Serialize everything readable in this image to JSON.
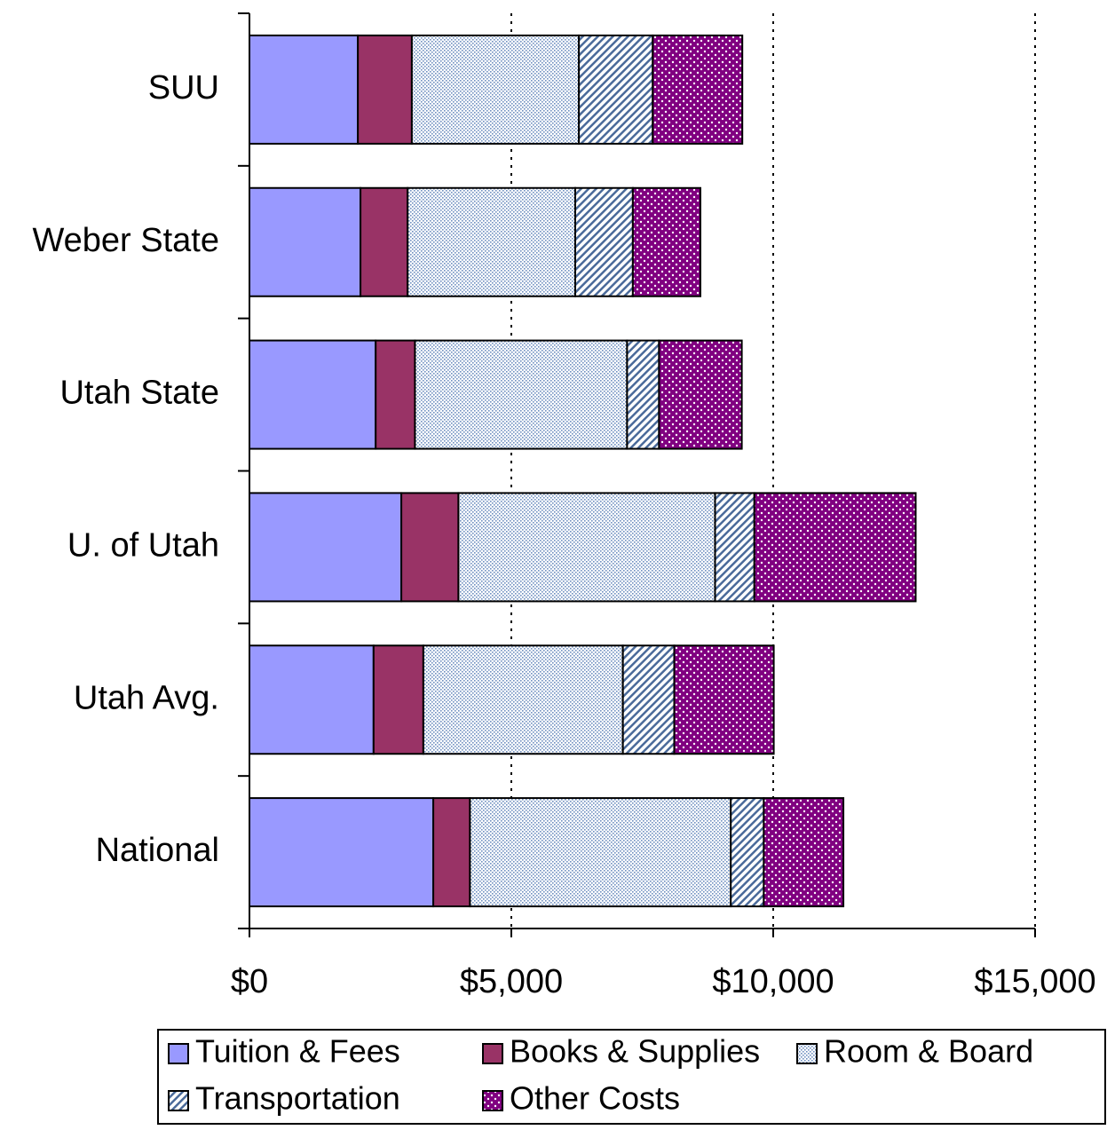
{
  "chart_data": {
    "type": "stacked_bar_horizontal",
    "categories": [
      "SUU",
      "Weber State",
      "Utah State",
      "U. of Utah",
      "Utah Avg.",
      "National"
    ],
    "series": [
      {
        "name": "Tuition & Fees",
        "color": "#9999ff",
        "pattern": "solid",
        "values": [
          2070,
          2120,
          2410,
          2900,
          2370,
          3510
        ]
      },
      {
        "name": "Books & Supplies",
        "color": "#993366",
        "pattern": "solid",
        "values": [
          1030,
          900,
          750,
          1090,
          950,
          700
        ]
      },
      {
        "name": "Room & Board",
        "color": "#6f8fc0",
        "pattern": "dots",
        "values": [
          3190,
          3200,
          4050,
          4900,
          3810,
          4980
        ]
      },
      {
        "name": "Transportation",
        "color": "#4a6a9a",
        "pattern": "hatch",
        "values": [
          1410,
          1100,
          610,
          750,
          980,
          630
        ]
      },
      {
        "name": "Other Costs",
        "color": "#800080",
        "pattern": "dots-on-color",
        "values": [
          1710,
          1290,
          1580,
          3080,
          1900,
          1520
        ]
      }
    ],
    "xlim": [
      0,
      15000
    ],
    "xticks": [
      {
        "value": 0,
        "label": "$0"
      },
      {
        "value": 5000,
        "label": "$5,000"
      },
      {
        "value": 10000,
        "label": "$10,000"
      },
      {
        "value": 15000,
        "label": "$15,000"
      }
    ],
    "grid": true,
    "legend": "bottom"
  }
}
